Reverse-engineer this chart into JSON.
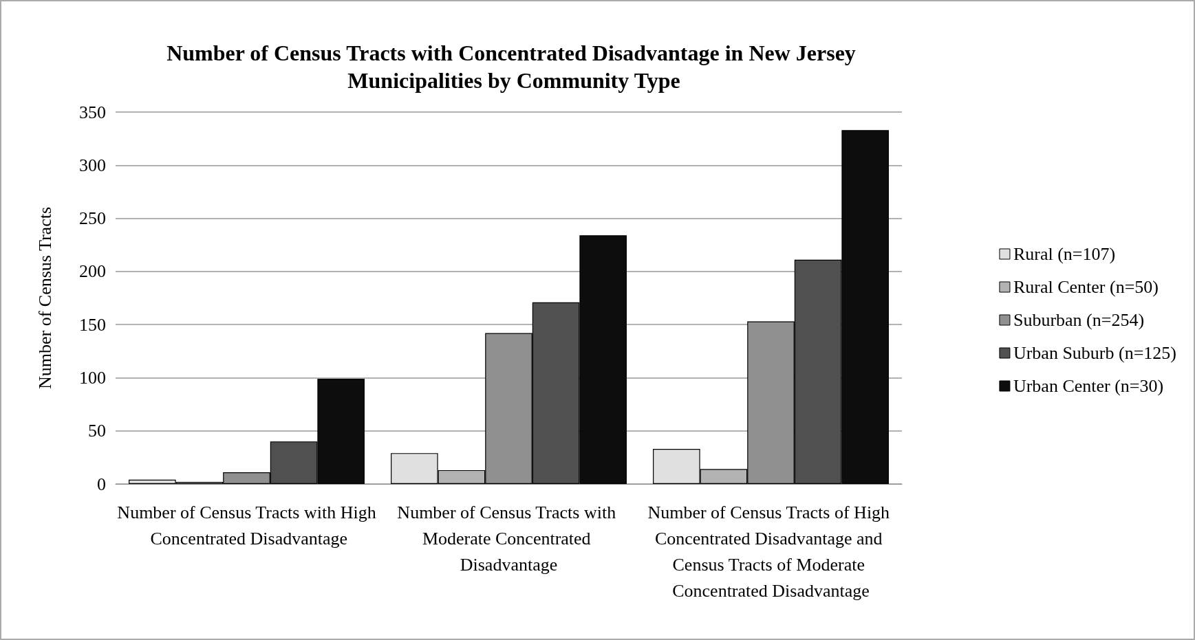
{
  "chart_data": {
    "type": "bar",
    "title": "Number of Census Tracts with Concentrated Disadvantage in New Jersey Municipalities by Community Type",
    "ylabel": "Number of Census Tracts",
    "categories": [
      "Number of Census Tracts with High Concentrated Disadvantage",
      "Number of Census Tracts with Moderate Concentrated Disadvantage",
      "Number of Census Tracts of High Concentrated Disadvantage and Census Tracts of Moderate Concentrated Disadvantage"
    ],
    "series": [
      {
        "name": "Rural (n=107)",
        "color": "#e0e0e0",
        "values": [
          4,
          29,
          33
        ]
      },
      {
        "name": "Rural Center (n=50)",
        "color": "#b3b3b3",
        "values": [
          2,
          13,
          14
        ]
      },
      {
        "name": "Suburban (n=254)",
        "color": "#909090",
        "values": [
          11,
          142,
          153
        ]
      },
      {
        "name": "Urban Suburb (n=125)",
        "color": "#505050",
        "values": [
          40,
          171,
          211
        ]
      },
      {
        "name": "Urban Center (n=30)",
        "color": "#0d0d0d",
        "values": [
          99,
          234,
          333
        ]
      }
    ],
    "ylim": [
      0,
      350
    ],
    "yticks": [
      0,
      50,
      100,
      150,
      200,
      250,
      300,
      350
    ],
    "grid": "y",
    "legend": "right"
  }
}
